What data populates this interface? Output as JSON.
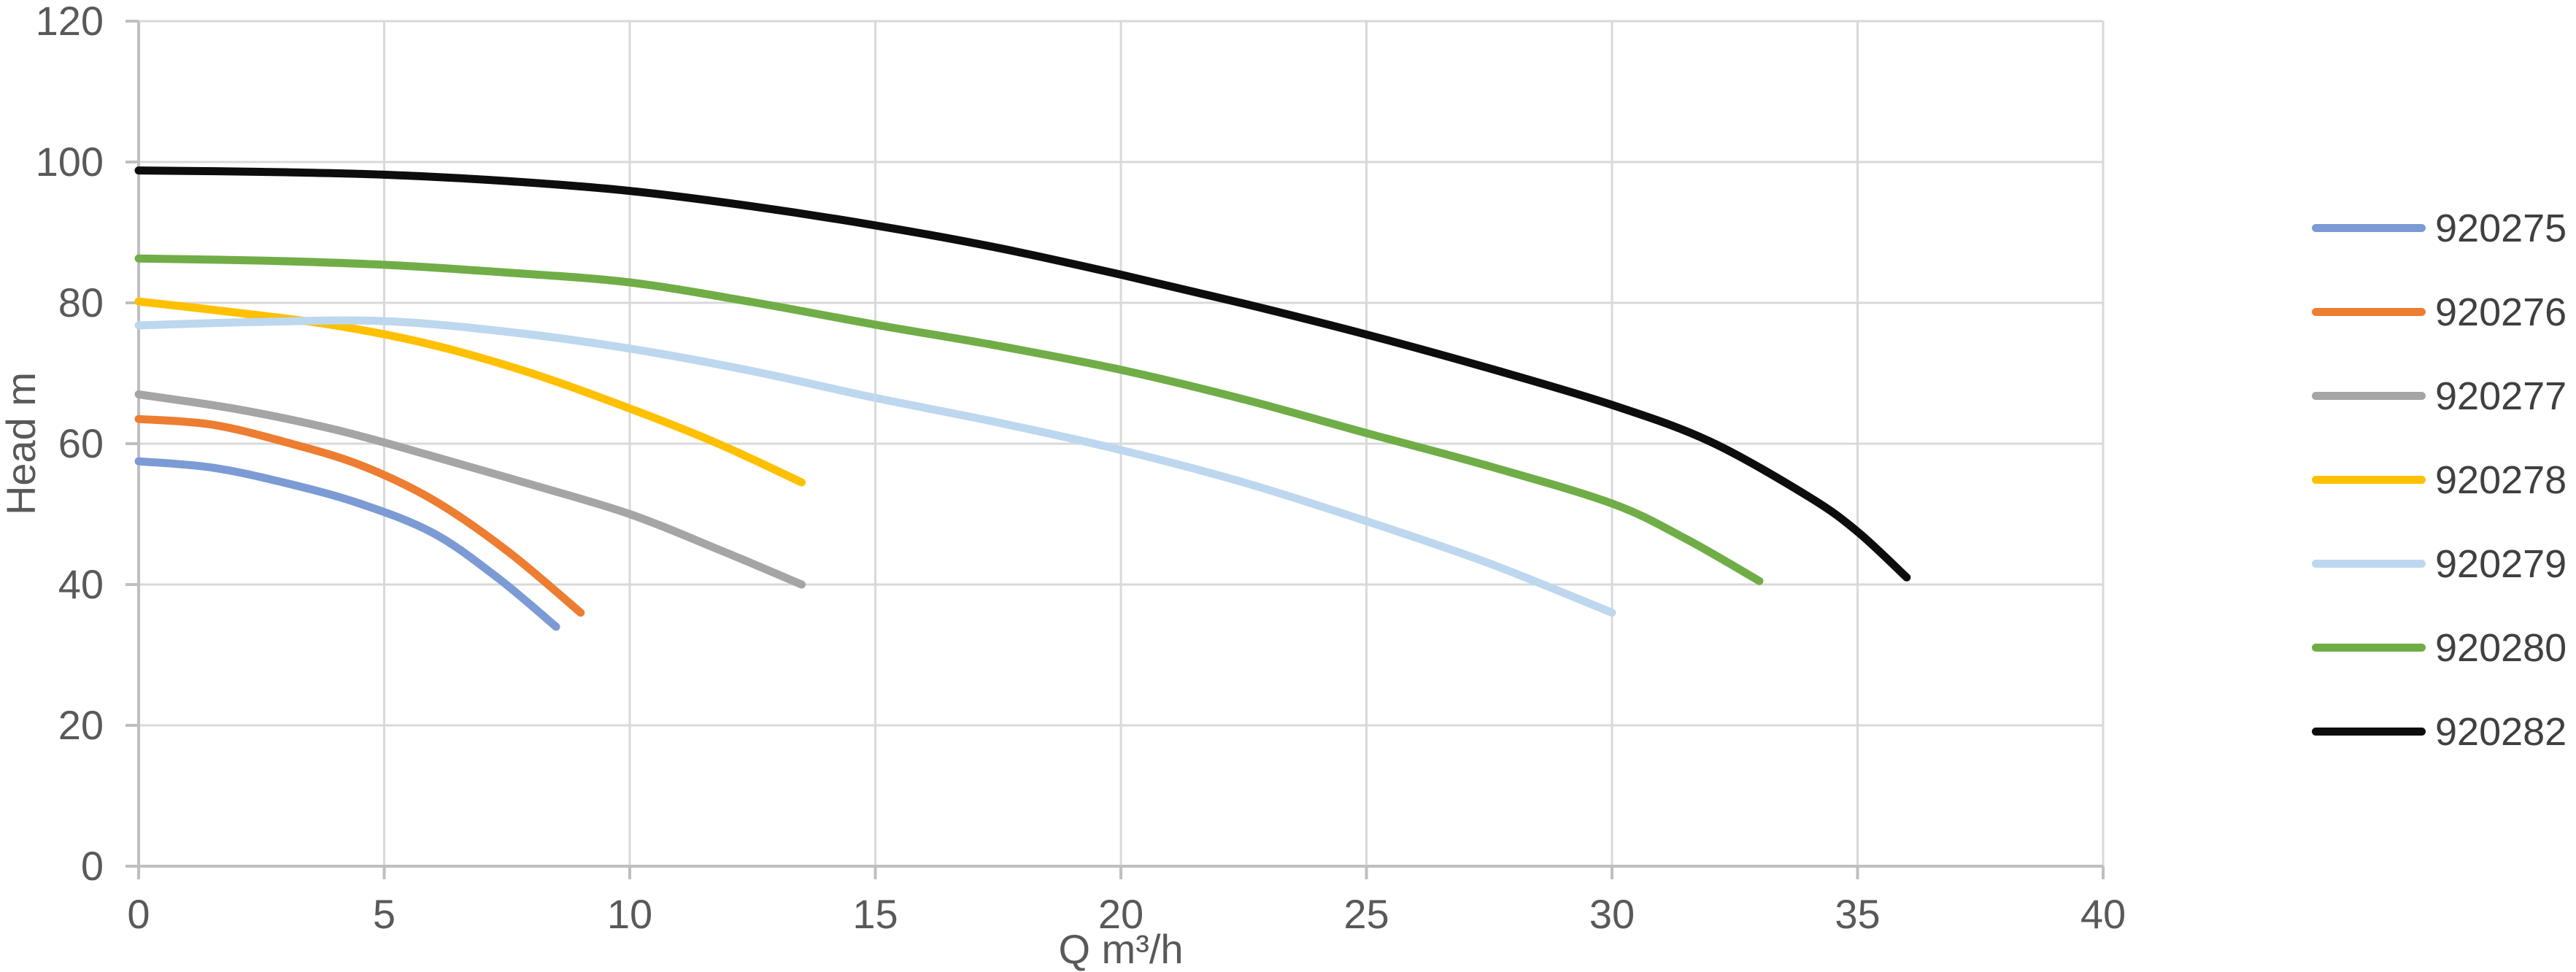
{
  "chart_data": {
    "type": "line",
    "title": "",
    "xlabel": "Q m³/h",
    "ylabel": "Head m",
    "xlim": [
      0,
      40
    ],
    "ylim": [
      0,
      120
    ],
    "x_ticks": [
      0,
      5,
      10,
      15,
      20,
      25,
      30,
      35,
      40
    ],
    "y_ticks": [
      0,
      20,
      40,
      60,
      80,
      100,
      120
    ],
    "grid": true,
    "legend_position": "right",
    "series": [
      {
        "name": "920275",
        "color": "#7C9BD5",
        "points": [
          [
            0,
            57.5
          ],
          [
            1.5,
            56.6
          ],
          [
            3,
            54.4
          ],
          [
            4.5,
            51.5
          ],
          [
            6,
            47.3
          ],
          [
            7.3,
            41
          ],
          [
            8.5,
            34
          ]
        ]
      },
      {
        "name": "920276",
        "color": "#ED7D31",
        "points": [
          [
            0,
            63.5
          ],
          [
            1.5,
            62.7
          ],
          [
            3,
            60.2
          ],
          [
            4.5,
            57
          ],
          [
            6,
            52
          ],
          [
            7.5,
            44.8
          ],
          [
            9,
            36
          ]
        ]
      },
      {
        "name": "920277",
        "color": "#A5A5A5",
        "points": [
          [
            0,
            67
          ],
          [
            2,
            64.9
          ],
          [
            4,
            62
          ],
          [
            6,
            58.2
          ],
          [
            8,
            54.2
          ],
          [
            10,
            50
          ],
          [
            11.8,
            45
          ],
          [
            13.5,
            40
          ]
        ]
      },
      {
        "name": "920278",
        "color": "#FFC000",
        "points": [
          [
            0,
            80.2
          ],
          [
            2,
            78.6
          ],
          [
            4,
            76.8
          ],
          [
            6,
            74
          ],
          [
            8,
            70
          ],
          [
            10,
            65
          ],
          [
            11.8,
            60
          ],
          [
            13.5,
            54.5
          ]
        ]
      },
      {
        "name": "920279",
        "color": "#BDD7EE",
        "points": [
          [
            0,
            76.8
          ],
          [
            2.5,
            77.3
          ],
          [
            5,
            77.4
          ],
          [
            7.5,
            75.9
          ],
          [
            10,
            73.5
          ],
          [
            12.5,
            70.3
          ],
          [
            15,
            66.5
          ],
          [
            17.5,
            63
          ],
          [
            20,
            59.1
          ],
          [
            22.5,
            54.5
          ],
          [
            25,
            49
          ],
          [
            27.5,
            43
          ],
          [
            30,
            36
          ]
        ]
      },
      {
        "name": "920280",
        "color": "#70AD47",
        "points": [
          [
            0,
            86.3
          ],
          [
            2.5,
            86
          ],
          [
            5,
            85.4
          ],
          [
            7.5,
            84.3
          ],
          [
            10,
            82.9
          ],
          [
            12.5,
            80.1
          ],
          [
            15,
            76.9
          ],
          [
            17.5,
            73.9
          ],
          [
            20,
            70.5
          ],
          [
            22.5,
            66.3
          ],
          [
            25,
            61.5
          ],
          [
            27.5,
            56.8
          ],
          [
            30,
            51.5
          ],
          [
            31.5,
            46.5
          ],
          [
            33,
            40.5
          ]
        ]
      },
      {
        "name": "920282",
        "color": "#0D0D0D",
        "points": [
          [
            0,
            98.8
          ],
          [
            2.5,
            98.6
          ],
          [
            5,
            98.2
          ],
          [
            7.5,
            97.3
          ],
          [
            10,
            95.9
          ],
          [
            12.5,
            93.7
          ],
          [
            15,
            91
          ],
          [
            17.5,
            87.8
          ],
          [
            20,
            84
          ],
          [
            22.5,
            79.9
          ],
          [
            25,
            75.5
          ],
          [
            27.5,
            70.7
          ],
          [
            30,
            65.5
          ],
          [
            32,
            60.3
          ],
          [
            34,
            52.5
          ],
          [
            35,
            47.5
          ],
          [
            36,
            41
          ]
        ]
      }
    ]
  },
  "styles": {
    "background": "#FFFFFF",
    "grid_color": "#D9D9D9",
    "axis_color": "#BFBFBF",
    "tick_label_color": "#595959",
    "legend_text_color": "#404040"
  }
}
